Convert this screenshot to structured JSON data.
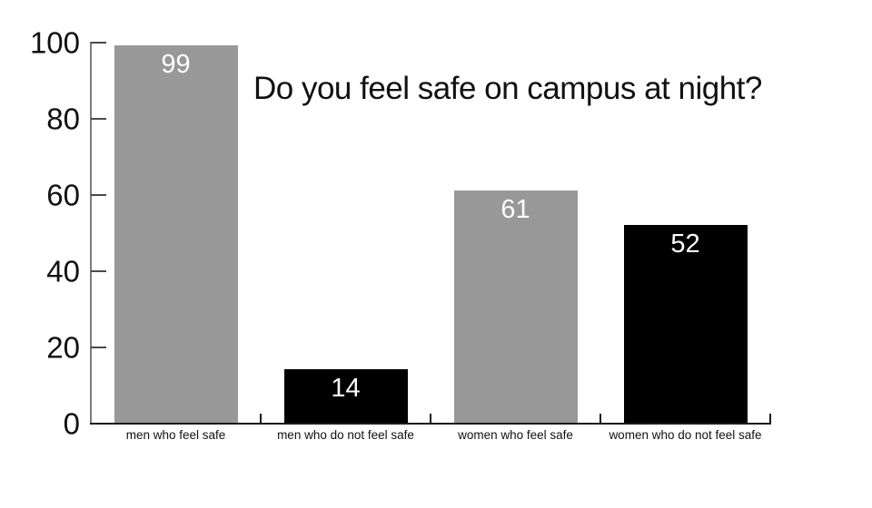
{
  "chart_data": {
    "type": "bar",
    "title": "Do you feel safe on campus at night?",
    "categories": [
      "men who feel safe",
      "men who do not feel safe",
      "women who feel safe",
      "women who do not feel safe"
    ],
    "values": [
      99,
      14,
      61,
      52
    ],
    "bar_colors": [
      "#989898",
      "#000000",
      "#989898",
      "#000000"
    ],
    "value_label_color": "#ffffff",
    "xlabel": "",
    "ylabel": "",
    "ylim": [
      0,
      100
    ],
    "yticks": [
      0,
      20,
      40,
      60,
      80,
      100
    ],
    "grid": false,
    "legend": false,
    "axis_color": "#7b7b7b",
    "tick_color": "#1a1a1a",
    "text_color": "#111111",
    "background_color": "#ffffff"
  }
}
